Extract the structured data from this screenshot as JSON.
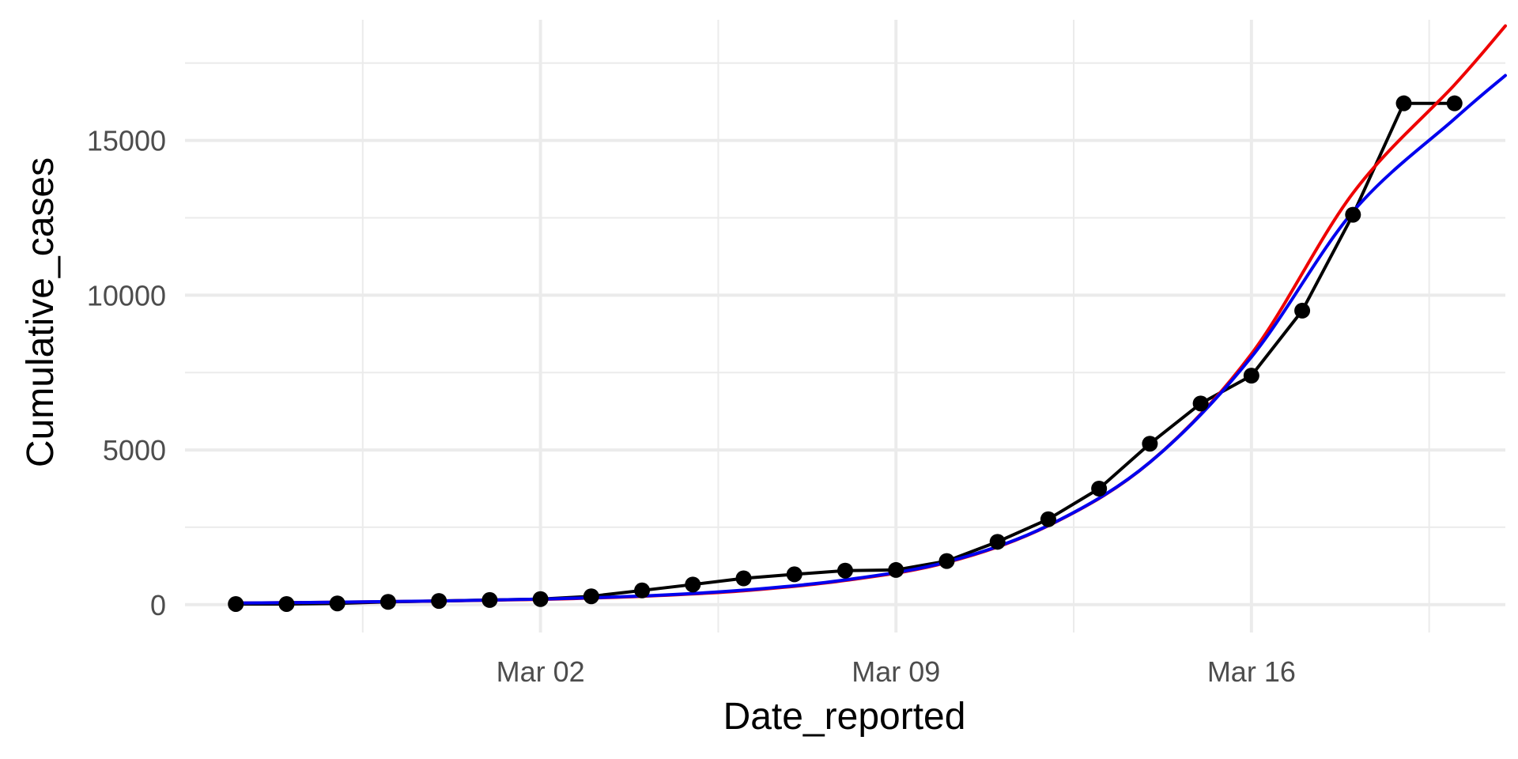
{
  "chart_data": {
    "type": "line",
    "title": "",
    "xlabel": "Date_reported",
    "ylabel": "Cumulative_cases",
    "x_axis": {
      "kind": "date",
      "range": [
        "2020-02-24",
        "2020-03-21"
      ],
      "ticks": [
        {
          "date": "2020-03-02",
          "label": "Mar 02"
        },
        {
          "date": "2020-03-09",
          "label": "Mar 09"
        },
        {
          "date": "2020-03-16",
          "label": "Mar 16"
        }
      ]
    },
    "y_axis": {
      "range": [
        -900,
        18900
      ],
      "ticks": [
        0,
        5000,
        10000,
        15000
      ]
    },
    "grid": true,
    "legend": "none",
    "series": [
      {
        "type": "line+points",
        "color": "#000000",
        "x": [
          "2020-02-25",
          "2020-02-26",
          "2020-02-27",
          "2020-02-28",
          "2020-02-29",
          "2020-03-01",
          "2020-03-02",
          "2020-03-03",
          "2020-03-04",
          "2020-03-05",
          "2020-03-06",
          "2020-03-07",
          "2020-03-08",
          "2020-03-09",
          "2020-03-10",
          "2020-03-11",
          "2020-03-12",
          "2020-03-13",
          "2020-03-14",
          "2020-03-15",
          "2020-03-16",
          "2020-03-17",
          "2020-03-18",
          "2020-03-19",
          "2020-03-20"
        ],
        "y": [
          20,
          20,
          40,
          90,
          120,
          150,
          180,
          270,
          460,
          650,
          850,
          980,
          1100,
          1120,
          1410,
          2030,
          2760,
          3750,
          5200,
          6500,
          7400,
          9500,
          12600,
          16200,
          16200
        ]
      },
      {
        "type": "line",
        "color": "#ee0000",
        "x": [
          "2020-02-25",
          "2020-02-27",
          "2020-02-29",
          "2020-03-02",
          "2020-03-04",
          "2020-03-06",
          "2020-03-08",
          "2020-03-10",
          "2020-03-12",
          "2020-03-14",
          "2020-03-16",
          "2020-03-18",
          "2020-03-20",
          "2020-03-21"
        ],
        "y": [
          50,
          80,
          115,
          170,
          270,
          450,
          780,
          1360,
          2550,
          4600,
          8100,
          13300,
          16800,
          18700
        ]
      },
      {
        "type": "line",
        "color": "#0000ee",
        "x": [
          "2020-02-25",
          "2020-02-27",
          "2020-02-29",
          "2020-03-02",
          "2020-03-04",
          "2020-03-06",
          "2020-03-08",
          "2020-03-10",
          "2020-03-12",
          "2020-03-14",
          "2020-03-16",
          "2020-03-18",
          "2020-03-20",
          "2020-03-21"
        ],
        "y": [
          50,
          80,
          120,
          180,
          280,
          470,
          800,
          1380,
          2560,
          4600,
          8000,
          12700,
          15700,
          17100
        ]
      }
    ]
  }
}
